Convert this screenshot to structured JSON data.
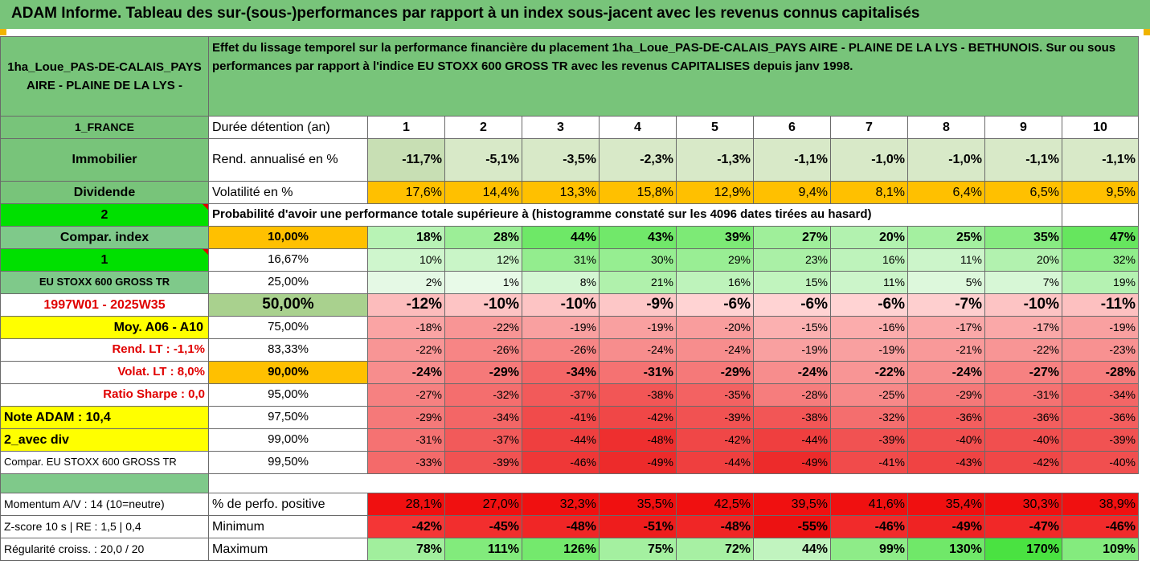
{
  "title": "ADAM Informe. Tableau des sur-(sous-)performances par rapport à un index sous-jacent avec les revenus connus capitalisés",
  "header": {
    "asset_name": "1ha_Loue_PAS-DE-CALAIS_PAYS AIRE - PLAINE DE LA LYS -",
    "description": "Effet du lissage temporel sur la performance financière du placement 1ha_Loue_PAS-DE-CALAIS_PAYS AIRE - PLAINE DE LA LYS - BETHUNOIS. Sur ou sous performances par rapport à l'indice EU STOXX 600 GROSS TR avec les revenus CAPITALISES depuis janv 1998."
  },
  "labels": {
    "country": "1_FRANCE",
    "category": "Immobilier",
    "dividend": "Dividende",
    "num2": "2",
    "compar_index": "Compar. index",
    "num1": "1",
    "index_name": "EU STOXX 600 GROSS TR",
    "period": "1997W01 - 2025W35",
    "moy": "Moy. A06 - A10",
    "rend_lt": "Rend. LT :   -1,1%",
    "volat_lt": "Volat. LT :   8,0%",
    "sharpe": "Ratio Sharpe :   0,0",
    "note": "Note ADAM : 10,4",
    "avec_div": "2_avec div",
    "compar_full": "Compar. EU STOXX 600 GROSS TR",
    "momentum": "Momentum A/V : 14 (10=neutre)",
    "zscore": "Z-score 10 s  |  RE : 1,5  |  0,4",
    "regularite": "Régularité croiss. : 20,0 / 20"
  },
  "rows": {
    "duration_label": "Durée détention (an)",
    "years": [
      "1",
      "2",
      "3",
      "4",
      "5",
      "6",
      "7",
      "8",
      "9",
      "10"
    ],
    "rend_label": "Rend. annualisé en %",
    "rend": [
      "-11,7%",
      "-5,1%",
      "-3,5%",
      "-2,3%",
      "-1,3%",
      "-1,1%",
      "-1,0%",
      "-1,0%",
      "-1,1%",
      "-1,1%"
    ],
    "vol_label": "Volatilité en %",
    "vol": [
      "17,6%",
      "14,4%",
      "13,3%",
      "15,8%",
      "12,9%",
      "9,4%",
      "8,1%",
      "6,4%",
      "6,5%",
      "9,5%"
    ],
    "prob_label": "Probabilité d'avoir une performance totale supérieure à (histogramme constaté sur les 4096 dates tirées au hasard)"
  },
  "quantiles": [
    {
      "p": "10,00%",
      "v": [
        "18%",
        "28%",
        "44%",
        "43%",
        "39%",
        "27%",
        "20%",
        "25%",
        "35%",
        "47%"
      ]
    },
    {
      "p": "16,67%",
      "v": [
        "10%",
        "12%",
        "31%",
        "30%",
        "29%",
        "23%",
        "16%",
        "11%",
        "20%",
        "32%"
      ]
    },
    {
      "p": "25,00%",
      "v": [
        "2%",
        "1%",
        "8%",
        "21%",
        "16%",
        "15%",
        "11%",
        "5%",
        "7%",
        "19%"
      ]
    },
    {
      "p": "50,00%",
      "v": [
        "-12%",
        "-10%",
        "-10%",
        "-9%",
        "-6%",
        "-6%",
        "-6%",
        "-7%",
        "-10%",
        "-11%"
      ]
    },
    {
      "p": "75,00%",
      "v": [
        "-18%",
        "-22%",
        "-19%",
        "-19%",
        "-20%",
        "-15%",
        "-16%",
        "-17%",
        "-17%",
        "-19%"
      ]
    },
    {
      "p": "83,33%",
      "v": [
        "-22%",
        "-26%",
        "-26%",
        "-24%",
        "-24%",
        "-19%",
        "-19%",
        "-21%",
        "-22%",
        "-23%"
      ]
    },
    {
      "p": "90,00%",
      "v": [
        "-24%",
        "-29%",
        "-34%",
        "-31%",
        "-29%",
        "-24%",
        "-22%",
        "-24%",
        "-27%",
        "-28%"
      ]
    },
    {
      "p": "95,00%",
      "v": [
        "-27%",
        "-32%",
        "-37%",
        "-38%",
        "-35%",
        "-28%",
        "-25%",
        "-29%",
        "-31%",
        "-34%"
      ]
    },
    {
      "p": "97,50%",
      "v": [
        "-29%",
        "-34%",
        "-41%",
        "-42%",
        "-39%",
        "-38%",
        "-32%",
        "-36%",
        "-36%",
        "-36%"
      ]
    },
    {
      "p": "99,00%",
      "v": [
        "-31%",
        "-37%",
        "-44%",
        "-48%",
        "-42%",
        "-44%",
        "-39%",
        "-40%",
        "-40%",
        "-39%"
      ]
    },
    {
      "p": "99,50%",
      "v": [
        "-33%",
        "-39%",
        "-46%",
        "-49%",
        "-44%",
        "-49%",
        "-41%",
        "-43%",
        "-42%",
        "-40%"
      ]
    }
  ],
  "stats": {
    "pos_label": "% de perfo. positive",
    "pos": [
      "28,1%",
      "27,0%",
      "32,3%",
      "35,5%",
      "42,5%",
      "39,5%",
      "41,6%",
      "35,4%",
      "30,3%",
      "38,9%"
    ],
    "min_label": "Minimum",
    "min": [
      "-42%",
      "-45%",
      "-48%",
      "-51%",
      "-48%",
      "-55%",
      "-46%",
      "-49%",
      "-47%",
      "-46%"
    ],
    "max_label": "Maximum",
    "max": [
      "78%",
      "111%",
      "126%",
      "75%",
      "72%",
      "44%",
      "99%",
      "130%",
      "170%",
      "109%"
    ]
  },
  "colors": {
    "header_green": "#78c47a",
    "bright_green": "#00e000",
    "yellow": "#ffff00",
    "orange": "#ffc000",
    "label_red": "#e00000"
  }
}
